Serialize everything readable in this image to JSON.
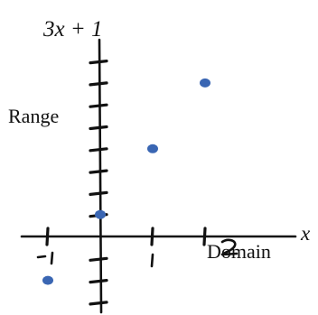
{
  "chart_data": {
    "type": "scatter",
    "title": "3x + 1",
    "xlabel": "x",
    "range_label": "Range",
    "domain_label": "Domain",
    "xlim": [
      -1,
      2
    ],
    "ylim": [
      -2,
      7
    ],
    "x_tick_labels": [
      "-1",
      "1",
      "2"
    ],
    "grid": false,
    "legend": "none",
    "point_color": "#3a66b3",
    "points": [
      {
        "x": -1,
        "y": -2
      },
      {
        "x": 0,
        "y": 1
      },
      {
        "x": 1,
        "y": 4
      },
      {
        "x": 2,
        "y": 7
      }
    ]
  }
}
